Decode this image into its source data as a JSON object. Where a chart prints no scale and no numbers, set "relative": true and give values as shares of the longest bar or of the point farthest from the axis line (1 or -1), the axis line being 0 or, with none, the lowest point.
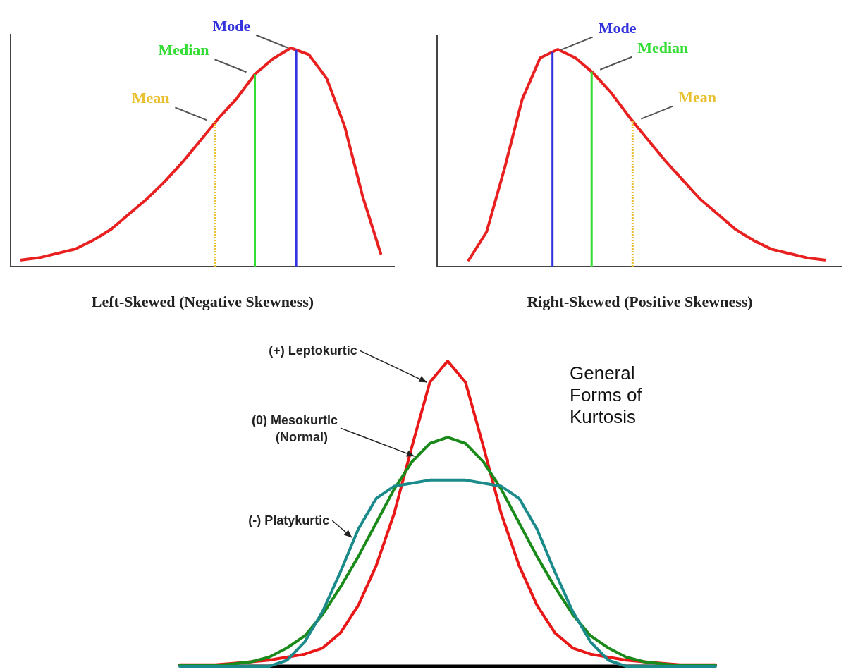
{
  "chart_data": [
    {
      "type": "line",
      "relative": true,
      "xlabel": "Left-Skewed (Negative Skewness)",
      "categories": [
        null,
        null,
        null,
        null,
        null,
        null,
        null,
        null,
        null,
        null,
        null,
        null,
        null,
        null,
        null,
        null,
        null,
        null,
        null,
        null,
        null
      ],
      "series": [
        {
          "color": "#e82020",
          "values": [
            0.03,
            0.04,
            0.06,
            0.08,
            0.12,
            0.17,
            0.24,
            0.31,
            0.39,
            0.48,
            0.58,
            0.68,
            0.77,
            0.88,
            0.95,
            1.0,
            0.97,
            0.86,
            0.64,
            0.32,
            0.06
          ]
        }
      ],
      "annotations": [
        "Mean",
        "Median",
        "Mode"
      ]
    },
    {
      "type": "line",
      "relative": true,
      "xlabel": "Right-Skewed (Positive Skewness)",
      "categories": [
        null,
        null,
        null,
        null,
        null,
        null,
        null,
        null,
        null,
        null,
        null,
        null,
        null,
        null,
        null,
        null,
        null,
        null,
        null,
        null,
        null
      ],
      "series": [
        {
          "color": "#e82020",
          "values": [
            0.03,
            0.16,
            0.45,
            0.77,
            0.96,
            1.0,
            0.96,
            0.89,
            0.8,
            0.69,
            0.59,
            0.49,
            0.4,
            0.31,
            0.24,
            0.17,
            0.12,
            0.08,
            0.06,
            0.04,
            0.03
          ]
        }
      ],
      "annotations": [
        "Mode",
        "Median",
        "Mean"
      ]
    },
    {
      "type": "line",
      "relative": true,
      "title": "General Forms of Kurtosis",
      "categories": [
        null,
        null,
        null,
        null,
        null,
        null,
        null,
        null,
        null,
        null,
        null,
        null,
        null,
        null,
        null,
        null,
        null,
        null,
        null,
        null,
        null,
        null,
        null,
        null,
        null,
        null,
        null,
        null,
        null,
        null,
        null
      ],
      "series": [
        {
          "name": "(+) Leptokurtic",
          "color": "#e81818",
          "values": [
            0.005,
            0.005,
            0.005,
            0.01,
            0.015,
            0.02,
            0.03,
            0.04,
            0.06,
            0.11,
            0.2,
            0.33,
            0.5,
            0.72,
            0.93,
            1.0,
            0.93,
            0.72,
            0.5,
            0.33,
            0.2,
            0.11,
            0.06,
            0.04,
            0.03,
            0.02,
            0.015,
            0.01,
            0.005,
            0.005,
            0.005
          ]
        },
        {
          "name": "(0) Mesokurtic (Normal)",
          "color": "#1a8a1a",
          "values": [
            0.003,
            0.003,
            0.003,
            0.008,
            0.015,
            0.03,
            0.06,
            0.1,
            0.17,
            0.26,
            0.36,
            0.47,
            0.58,
            0.67,
            0.73,
            0.75,
            0.73,
            0.67,
            0.58,
            0.47,
            0.36,
            0.26,
            0.17,
            0.1,
            0.06,
            0.03,
            0.015,
            0.008,
            0.003,
            0.003,
            0.003
          ]
        },
        {
          "name": "(-) Platykurtic",
          "color": "#1a8a8a",
          "values": [
            0,
            0,
            0,
            0,
            0,
            0,
            0.02,
            0.08,
            0.18,
            0.31,
            0.45,
            0.55,
            0.59,
            0.6,
            0.61,
            0.61,
            0.61,
            0.6,
            0.59,
            0.55,
            0.45,
            0.31,
            0.18,
            0.08,
            0.02,
            0,
            0,
            0,
            0,
            0,
            0
          ]
        }
      ]
    }
  ]
}
